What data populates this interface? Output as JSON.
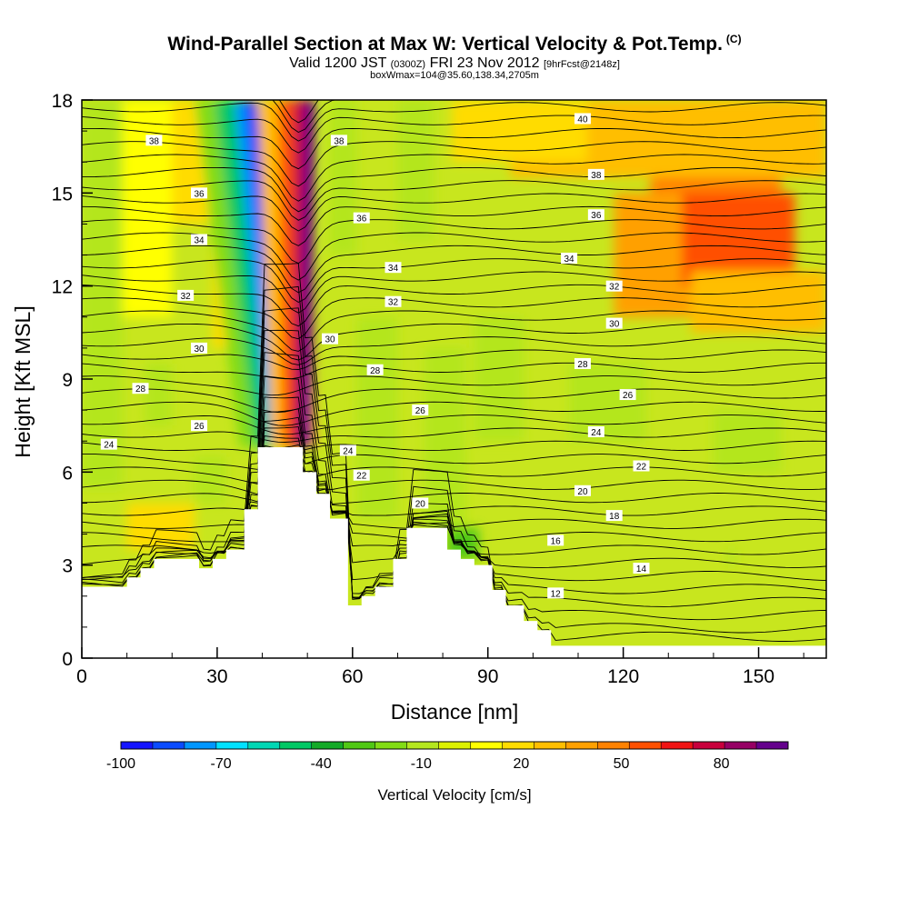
{
  "header": {
    "title": "Wind-Parallel Section at Max W: Vertical Velocity & Pot.Temp.",
    "copyright": "(C)",
    "valid_prefix": "Valid 1200 JST",
    "valid_utc": "(0300Z)",
    "valid_date": "FRI 23 Nov 2012",
    "forecast": "[9hrFcst@2148z]",
    "box_info": "boxWmax=104@35.60,138.34,2705m"
  },
  "chart_data": {
    "type": "heatmap",
    "xlabel": "Distance [nm]",
    "ylabel": "Height [Kft MSL]",
    "xlim": [
      0,
      165
    ],
    "ylim": [
      0,
      18
    ],
    "x_ticks": [
      "0",
      "30",
      "60",
      "90",
      "120",
      "150"
    ],
    "x_tick_values": [
      0,
      30,
      60,
      90,
      120,
      150
    ],
    "y_ticks": [
      "0",
      "3",
      "6",
      "9",
      "12",
      "15",
      "18"
    ],
    "y_tick_values": [
      0,
      3,
      6,
      9,
      12,
      15,
      18
    ],
    "colorbar": {
      "title": "Vertical Velocity [cm/s]",
      "tick_labels": [
        "-100",
        "-70",
        "-40",
        "-10",
        "20",
        "50",
        "80"
      ],
      "tick_values": [
        -100,
        -70,
        -40,
        -10,
        20,
        50,
        80
      ],
      "range": [
        -100,
        100
      ],
      "colors": [
        "#1414ff",
        "#0a4bff",
        "#0096ff",
        "#00e1ff",
        "#00d7b4",
        "#00c864",
        "#14aa28",
        "#50c814",
        "#82dc14",
        "#b4e61e",
        "#dcf000",
        "#ffff00",
        "#ffdc00",
        "#ffbe00",
        "#ffa000",
        "#ff8200",
        "#ff5000",
        "#f01414",
        "#c8003c",
        "#960064",
        "#64008c"
      ]
    },
    "isentropes": {
      "name": "Pot.Temp.",
      "labels": [
        {
          "value": "38",
          "x": 16,
          "y": 16.7
        },
        {
          "value": "36",
          "x": 26,
          "y": 15.0
        },
        {
          "value": "34",
          "x": 26,
          "y": 13.5
        },
        {
          "value": "32",
          "x": 23,
          "y": 11.7
        },
        {
          "value": "30",
          "x": 26,
          "y": 10.0
        },
        {
          "value": "28",
          "x": 13,
          "y": 8.7
        },
        {
          "value": "26",
          "x": 26,
          "y": 7.5
        },
        {
          "value": "24",
          "x": 6,
          "y": 6.9
        },
        {
          "value": "38",
          "x": 57,
          "y": 16.7
        },
        {
          "value": "36",
          "x": 62,
          "y": 14.2
        },
        {
          "value": "34",
          "x": 69,
          "y": 12.6
        },
        {
          "value": "32",
          "x": 69,
          "y": 11.5
        },
        {
          "value": "30",
          "x": 55,
          "y": 10.3
        },
        {
          "value": "28",
          "x": 65,
          "y": 9.3
        },
        {
          "value": "26",
          "x": 75,
          "y": 8.0
        },
        {
          "value": "24",
          "x": 59,
          "y": 6.7
        },
        {
          "value": "22",
          "x": 62,
          "y": 5.9
        },
        {
          "value": "20",
          "x": 75,
          "y": 5.0
        },
        {
          "value": "40",
          "x": 111,
          "y": 17.4
        },
        {
          "value": "38",
          "x": 114,
          "y": 15.6
        },
        {
          "value": "36",
          "x": 114,
          "y": 14.3
        },
        {
          "value": "34",
          "x": 108,
          "y": 12.9
        },
        {
          "value": "32",
          "x": 118,
          "y": 12.0
        },
        {
          "value": "30",
          "x": 118,
          "y": 10.8
        },
        {
          "value": "28",
          "x": 111,
          "y": 9.5
        },
        {
          "value": "26",
          "x": 121,
          "y": 8.5
        },
        {
          "value": "24",
          "x": 114,
          "y": 7.3
        },
        {
          "value": "22",
          "x": 124,
          "y": 6.2
        },
        {
          "value": "20",
          "x": 111,
          "y": 5.4
        },
        {
          "value": "18",
          "x": 118,
          "y": 4.6
        },
        {
          "value": "16",
          "x": 105,
          "y": 3.8
        },
        {
          "value": "14",
          "x": 124,
          "y": 2.9
        },
        {
          "value": "12",
          "x": 105,
          "y": 2.1
        }
      ]
    },
    "terrain_profile": {
      "x": [
        0,
        7,
        10,
        13,
        16,
        23,
        26,
        29,
        32,
        36,
        39,
        46,
        49,
        52,
        55,
        59,
        62,
        65,
        69,
        72,
        75,
        81,
        84,
        87,
        91,
        94,
        98,
        101,
        104,
        165
      ],
      "y": [
        2.3,
        2.3,
        2.6,
        2.9,
        3.2,
        3.2,
        2.9,
        3.2,
        3.5,
        4.8,
        6.8,
        6.8,
        6.0,
        5.3,
        4.5,
        1.7,
        2.0,
        2.3,
        3.2,
        4.2,
        4.2,
        3.5,
        3.2,
        3.0,
        2.2,
        1.7,
        1.2,
        0.9,
        0.4,
        0.4
      ]
    }
  }
}
